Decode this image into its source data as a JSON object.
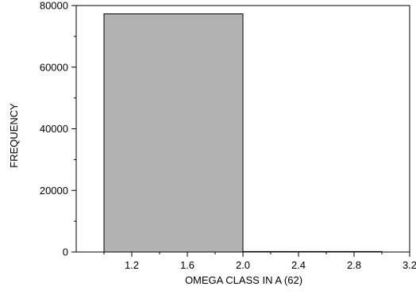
{
  "chart_data": {
    "type": "bar",
    "title": "",
    "xlabel": "OMEGA CLASS IN A (62)",
    "ylabel": "FREQUENCY",
    "xlim": [
      0.8,
      3.2
    ],
    "ylim": [
      0,
      80000
    ],
    "xticks": [
      "1.2",
      "1.6",
      "2.0",
      "2.4",
      "2.8",
      "3.2"
    ],
    "yticks": [
      "0",
      "20000",
      "40000",
      "60000",
      "80000"
    ],
    "bins": [
      {
        "x0": 1.0,
        "x1": 2.0,
        "value": 77300
      },
      {
        "x0": 2.0,
        "x1": 3.0,
        "value": 150
      }
    ],
    "bar_color": "#b2b2b2",
    "grid": false
  }
}
